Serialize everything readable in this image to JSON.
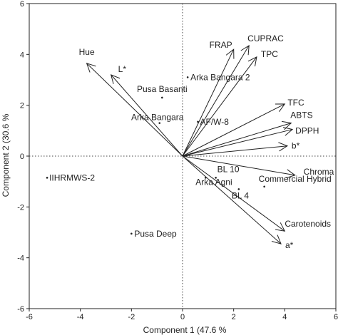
{
  "chart_data": {
    "type": "scatter",
    "subtype": "biplot",
    "xlabel": "Component 1  (47.6 %",
    "ylabel": "Component 2  (30.6 %",
    "xlim": [
      -6,
      6
    ],
    "ylim": [
      -6,
      6
    ],
    "xticks": [
      "-6",
      "-4",
      "-2",
      "0",
      "2",
      "4",
      "6"
    ],
    "yticks": [
      "6",
      "4",
      "2",
      "0",
      "-2",
      "-4",
      "-6"
    ],
    "grid": false,
    "zero_lines": "dotted",
    "samples": [
      {
        "label": "Arka Bangara 2",
        "x": 0.2,
        "y": 3.1
      },
      {
        "label": "Pusa Basanti",
        "x": -0.8,
        "y": 2.3
      },
      {
        "label": "Arka Bangara",
        "x": -0.9,
        "y": 1.3
      },
      {
        "label": "AF/W-8",
        "x": 0.6,
        "y": 1.35
      },
      {
        "label": "IIHRMWS-2",
        "x": -5.3,
        "y": -0.85
      },
      {
        "label": "BL 10",
        "x": 1.3,
        "y": -0.85
      },
      {
        "label": "Arka Agni",
        "x": 0.9,
        "y": -0.85
      },
      {
        "label": "BL 4",
        "x": 2.2,
        "y": -1.3
      },
      {
        "label": "Commercial Hybrid",
        "x": 3.2,
        "y": -1.2
      },
      {
        "label": "Pusa Deep",
        "x": -2.0,
        "y": -3.05
      }
    ],
    "loadings": [
      {
        "label": "Hue",
        "x": -3.75,
        "y": 3.65
      },
      {
        "label": "L*",
        "x": -2.8,
        "y": 3.2
      },
      {
        "label": "FRAP",
        "x": 2.0,
        "y": 4.2
      },
      {
        "label": "CUPRAC",
        "x": 2.6,
        "y": 4.35
      },
      {
        "label": "TPC",
        "x": 2.9,
        "y": 3.9
      },
      {
        "label": "TFC",
        "x": 4.0,
        "y": 2.05
      },
      {
        "label": "ABTS",
        "x": 4.25,
        "y": 1.3
      },
      {
        "label": "DPPH",
        "x": 4.3,
        "y": 1.05
      },
      {
        "label": "b*",
        "x": 4.1,
        "y": 0.4
      },
      {
        "label": "Chroma",
        "x": 4.4,
        "y": -0.75
      },
      {
        "label": "Carotenoids",
        "x": 4.0,
        "y": -2.95
      },
      {
        "label": "a*",
        "x": 3.85,
        "y": -3.45
      }
    ]
  }
}
